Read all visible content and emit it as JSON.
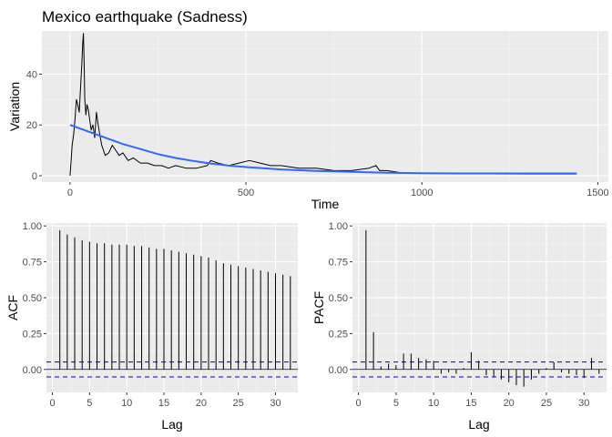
{
  "chart_data": [
    {
      "type": "line",
      "title": "Mexico earthquake (Sadness)",
      "xlabel": "Time",
      "ylabel": "Variation",
      "xlim": [
        -80,
        1530
      ],
      "ylim": [
        -2.5,
        57
      ],
      "xticks": [
        0,
        500,
        1000,
        1500
      ],
      "yticks": [
        0,
        20,
        40
      ],
      "grid": true,
      "series": [
        {
          "style": "black-line",
          "x": [
            0,
            3,
            6,
            10,
            14,
            18,
            22,
            26,
            30,
            34,
            36,
            38,
            40,
            42,
            45,
            48,
            52,
            56,
            60,
            65,
            70,
            75,
            80,
            85,
            90,
            95,
            100,
            110,
            120,
            130,
            140,
            150,
            165,
            180,
            200,
            220,
            240,
            260,
            280,
            300,
            330,
            360,
            390,
            400,
            420,
            450,
            480,
            510,
            540,
            570,
            600,
            650,
            700,
            750,
            800,
            850,
            870,
            880,
            900,
            950,
            1000,
            1050,
            1100,
            1150,
            1200,
            1250,
            1300,
            1350,
            1400,
            1440
          ],
          "y": [
            0,
            6,
            12,
            16,
            22,
            30,
            28,
            25,
            35,
            45,
            52,
            56,
            44,
            30,
            24,
            28,
            26,
            22,
            18,
            20,
            15,
            25,
            20,
            16,
            12,
            10,
            8,
            9,
            12,
            10,
            8,
            9,
            6,
            7,
            5,
            5,
            4,
            4,
            3,
            4,
            3,
            3,
            4,
            6,
            5,
            4,
            5,
            6,
            5,
            4,
            4,
            3,
            3,
            2,
            2,
            3,
            4,
            2,
            2,
            1,
            1,
            1,
            1,
            1,
            1,
            1,
            1,
            1,
            1,
            1
          ]
        },
        {
          "style": "blue-smooth",
          "x": [
            0,
            50,
            100,
            150,
            200,
            250,
            300,
            350,
            400,
            450,
            500,
            600,
            700,
            800,
            900,
            1000,
            1100,
            1200,
            1300,
            1440
          ],
          "y": [
            20,
            17.5,
            15,
            12.5,
            10.5,
            8.5,
            7,
            5.8,
            4.8,
            4,
            3.4,
            2.5,
            1.9,
            1.5,
            1.2,
            1,
            0.9,
            0.9,
            0.8,
            0.8
          ]
        }
      ]
    },
    {
      "type": "bar",
      "xlabel": "Lag",
      "ylabel": "ACF",
      "xlim": [
        -0.8,
        33
      ],
      "ylim": [
        -0.16,
        1.02
      ],
      "xticks": [
        0,
        5,
        10,
        15,
        20,
        25,
        30
      ],
      "yticks": [
        0,
        0.25,
        0.5,
        0.75,
        1
      ],
      "ytick_labels": [
        "0.00",
        "0.25",
        "0.50",
        "0.75",
        "1.00"
      ],
      "grid": true,
      "conf_limits": [
        0.052,
        -0.052
      ],
      "lags": [
        1,
        2,
        3,
        4,
        5,
        6,
        7,
        8,
        9,
        10,
        11,
        12,
        13,
        14,
        15,
        16,
        17,
        18,
        19,
        20,
        21,
        22,
        23,
        24,
        25,
        26,
        27,
        28,
        29,
        30,
        31,
        32
      ],
      "values": [
        0.97,
        0.94,
        0.92,
        0.9,
        0.89,
        0.88,
        0.88,
        0.87,
        0.87,
        0.87,
        0.86,
        0.86,
        0.85,
        0.84,
        0.84,
        0.83,
        0.82,
        0.81,
        0.8,
        0.79,
        0.78,
        0.76,
        0.74,
        0.73,
        0.72,
        0.71,
        0.7,
        0.69,
        0.68,
        0.67,
        0.66,
        0.65
      ]
    },
    {
      "type": "bar",
      "xlabel": "Lag",
      "ylabel": "PACF",
      "xlim": [
        -0.8,
        33
      ],
      "ylim": [
        -0.16,
        1.02
      ],
      "xticks": [
        0,
        5,
        10,
        15,
        20,
        25,
        30
      ],
      "yticks": [
        0,
        0.25,
        0.5,
        0.75,
        1
      ],
      "ytick_labels": [
        "0.00",
        "0.25",
        "0.50",
        "0.75",
        "1.00"
      ],
      "grid": true,
      "conf_limits": [
        0.052,
        -0.052
      ],
      "lags": [
        1,
        2,
        3,
        4,
        5,
        6,
        7,
        8,
        9,
        10,
        11,
        12,
        13,
        14,
        15,
        16,
        17,
        18,
        19,
        20,
        21,
        22,
        23,
        24,
        25,
        26,
        27,
        28,
        29,
        30,
        31,
        32
      ],
      "values": [
        0.97,
        0.26,
        0.02,
        0.04,
        0.03,
        0.11,
        0.11,
        0.08,
        0.07,
        0.06,
        -0.03,
        -0.02,
        -0.03,
        0.01,
        0.12,
        0.06,
        -0.04,
        -0.05,
        -0.07,
        -0.09,
        -0.11,
        -0.12,
        -0.07,
        -0.03,
        0.01,
        0.05,
        -0.02,
        -0.03,
        -0.04,
        -0.06,
        0.08,
        -0.03
      ]
    }
  ]
}
